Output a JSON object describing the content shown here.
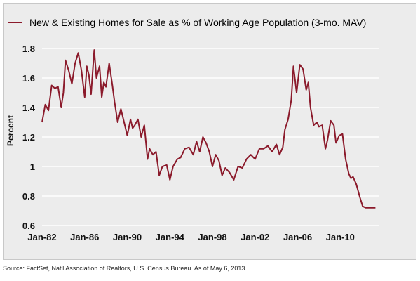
{
  "chart_data": {
    "type": "line",
    "title": "",
    "ylabel": "Percent",
    "xlabel": "",
    "ylim": [
      0.6,
      1.8
    ],
    "yticks": [
      "0.6",
      "0.8",
      "1",
      "1.2",
      "1.4",
      "1.6",
      "1.8"
    ],
    "xticks": [
      "Jan-82",
      "Jan-86",
      "Jan-90",
      "Jan-94",
      "Jan-98",
      "Jan-02",
      "Jan-06",
      "Jan-10"
    ],
    "grid": "horizontal",
    "legend_position": "top",
    "series": [
      {
        "name": "New & Existing Homes for Sale as % of Working Age Population (3-mo. MAV)",
        "color": "#8b1a2b",
        "x": [
          1982.0,
          1982.3,
          1982.6,
          1982.9,
          1983.2,
          1983.5,
          1983.8,
          1984.0,
          1984.2,
          1984.5,
          1984.8,
          1985.1,
          1985.4,
          1985.7,
          1986.0,
          1986.2,
          1986.4,
          1986.6,
          1986.9,
          1987.1,
          1987.4,
          1987.6,
          1987.8,
          1988.0,
          1988.3,
          1988.6,
          1988.8,
          1989.1,
          1989.4,
          1989.7,
          1990.0,
          1990.3,
          1990.5,
          1990.7,
          1991.0,
          1991.3,
          1991.6,
          1991.9,
          1992.1,
          1992.4,
          1992.7,
          1993.0,
          1993.3,
          1993.7,
          1994.0,
          1994.3,
          1994.7,
          1995.0,
          1995.4,
          1995.8,
          1996.2,
          1996.5,
          1996.8,
          1997.1,
          1997.4,
          1997.7,
          1998.0,
          1998.3,
          1998.6,
          1998.9,
          1999.2,
          1999.6,
          2000.0,
          2000.4,
          2000.8,
          2001.2,
          2001.6,
          2002.0,
          2002.4,
          2002.8,
          2003.2,
          2003.6,
          2004.0,
          2004.3,
          2004.6,
          2004.8,
          2005.1,
          2005.4,
          2005.6,
          2005.9,
          2006.2,
          2006.5,
          2006.8,
          2007.0,
          2007.2,
          2007.5,
          2007.8,
          2008.0,
          2008.3,
          2008.6,
          2008.8,
          2009.1,
          2009.4,
          2009.6,
          2009.9,
          2010.2,
          2010.5,
          2010.8,
          2011.0,
          2011.2,
          2011.5,
          2011.8,
          2012.1,
          2012.4,
          2012.7,
          2012.9,
          2013.1,
          2013.3
        ],
        "values": [
          1.3,
          1.42,
          1.38,
          1.55,
          1.53,
          1.54,
          1.4,
          1.5,
          1.72,
          1.65,
          1.56,
          1.7,
          1.77,
          1.65,
          1.47,
          1.68,
          1.62,
          1.49,
          1.79,
          1.6,
          1.68,
          1.47,
          1.57,
          1.54,
          1.7,
          1.55,
          1.44,
          1.3,
          1.39,
          1.3,
          1.21,
          1.32,
          1.26,
          1.28,
          1.32,
          1.2,
          1.28,
          1.05,
          1.12,
          1.08,
          1.1,
          0.94,
          1.0,
          1.01,
          0.91,
          1.0,
          1.05,
          1.06,
          1.12,
          1.13,
          1.08,
          1.17,
          1.1,
          1.2,
          1.16,
          1.1,
          1.0,
          1.08,
          1.04,
          0.94,
          0.99,
          0.96,
          0.91,
          1.0,
          0.99,
          1.05,
          1.08,
          1.05,
          1.12,
          1.12,
          1.14,
          1.1,
          1.15,
          1.08,
          1.13,
          1.25,
          1.32,
          1.45,
          1.68,
          1.5,
          1.69,
          1.66,
          1.52,
          1.57,
          1.4,
          1.28,
          1.3,
          1.27,
          1.28,
          1.12,
          1.18,
          1.31,
          1.28,
          1.16,
          1.21,
          1.22,
          1.05,
          0.95,
          0.92,
          0.93,
          0.88,
          0.8,
          0.73,
          0.72,
          0.72,
          0.72,
          0.72,
          0.72
        ]
      }
    ]
  },
  "source_note": "Source: FactSet, Nat'l Association of Realtors, U.S. Census Bureau. As of May 6, 2013."
}
